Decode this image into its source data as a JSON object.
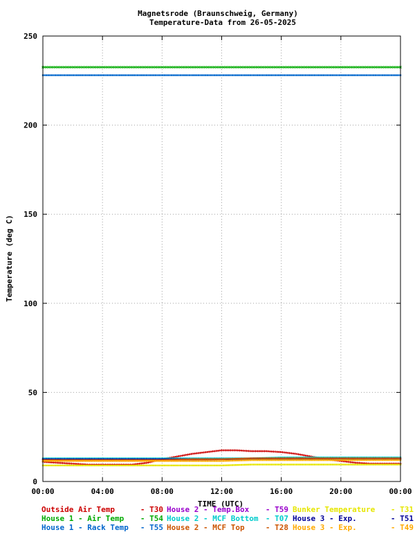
{
  "chart_data": {
    "type": "scatter",
    "title": "Magnetsrode (Braunschweig, Germany)",
    "subtitle": "Temperature-Data from 26-05-2025",
    "xlabel": "TIME (UTC)",
    "ylabel": "Temperature (deg C)",
    "xlim": [
      0,
      24
    ],
    "ylim": [
      0,
      250
    ],
    "x_ticks": [
      "00:00",
      "04:00",
      "08:00",
      "12:00",
      "16:00",
      "20:00",
      "00:00"
    ],
    "y_ticks": [
      "0",
      "50",
      "100",
      "150",
      "200",
      "250"
    ],
    "grid": true,
    "legend_position": "bottom",
    "series": [
      {
        "name": "Outside Air Temp",
        "code": "T30",
        "color": "#cc0000",
        "marker": "plus",
        "x": [
          0,
          1,
          2,
          3,
          4,
          5,
          6,
          7,
          8,
          9,
          10,
          11,
          12,
          13,
          14,
          15,
          16,
          17,
          18,
          19,
          20,
          21,
          22,
          23,
          24
        ],
        "y": [
          11,
          10.5,
          10,
          9.5,
          9.5,
          9.5,
          9.5,
          10.5,
          12.5,
          14,
          15.5,
          16.5,
          17.5,
          17.5,
          17,
          17,
          16.5,
          15.5,
          14,
          12.5,
          11.5,
          10.5,
          10,
          10,
          10
        ]
      },
      {
        "name": "House 2 - Temp.Box",
        "code": "T59",
        "color": "#9900cc",
        "marker": "dot",
        "x": [
          0,
          2,
          4,
          6,
          8,
          10,
          12,
          14,
          16,
          18,
          20,
          22,
          24
        ],
        "y": [
          12,
          12,
          12,
          12,
          12,
          12,
          12.5,
          13,
          13,
          13,
          13,
          13,
          13
        ]
      },
      {
        "name": "Bunker Temperature",
        "code": "T31",
        "color": "#e6e600",
        "marker": "dot",
        "x": [
          0,
          2,
          4,
          6,
          8,
          10,
          12,
          14,
          16,
          18,
          20,
          22,
          24
        ],
        "y": [
          9,
          9,
          9,
          9,
          9,
          9,
          9,
          9.5,
          9.5,
          9.5,
          9.5,
          9.5,
          9.5
        ]
      },
      {
        "name": "House 1 - Air  Temp",
        "code": "T54",
        "color": "#00aa00",
        "marker": "cross",
        "x": [
          0,
          2,
          4,
          6,
          8,
          10,
          12,
          14,
          16,
          18,
          20,
          22,
          24
        ],
        "y": [
          232.5,
          232.5,
          232.5,
          232.5,
          232.5,
          232.5,
          232.5,
          232.5,
          232.5,
          232.5,
          232.5,
          232.5,
          232.5
        ]
      },
      {
        "name": "House 2 - MCF Bottom",
        "code": "T07",
        "color": "#00cccc",
        "marker": "dot",
        "x": [
          0,
          2,
          4,
          6,
          8,
          10,
          12,
          14,
          16,
          18,
          20,
          22,
          24
        ],
        "y": [
          13,
          13,
          13,
          13,
          13,
          13,
          13,
          13,
          13.5,
          13.5,
          13.5,
          13.5,
          13.5
        ]
      },
      {
        "name": "House 3 - Exp.",
        "code": "T51",
        "color": "#000099",
        "marker": "dot",
        "x": [
          0,
          2,
          4,
          6,
          8,
          10,
          12,
          14,
          16,
          18,
          20,
          22,
          24
        ],
        "y": [
          12.5,
          12.5,
          12.5,
          12.5,
          12.5,
          12.5,
          12.5,
          12.5,
          12.5,
          12.5,
          12.5,
          12.5,
          12.5
        ]
      },
      {
        "name": "House 1 - Rack Temp",
        "code": "T55",
        "color": "#0066cc",
        "marker": "dot",
        "x": [
          0,
          2,
          4,
          6,
          8,
          10,
          12,
          14,
          16,
          18,
          20,
          22,
          24
        ],
        "y": [
          228,
          228,
          228,
          228,
          228,
          228,
          228,
          228,
          228,
          228,
          228,
          228,
          228
        ]
      },
      {
        "name": "House 2 - MCF Top",
        "code": "T28",
        "color": "#cc5500",
        "marker": "dot",
        "x": [
          0,
          2,
          4,
          6,
          8,
          10,
          12,
          14,
          16,
          18,
          20,
          22,
          24
        ],
        "y": [
          12,
          12,
          12,
          12,
          12,
          12.5,
          12.5,
          13,
          13,
          13,
          13,
          13,
          13
        ]
      },
      {
        "name": "House 3 - Exp.",
        "code": "T49",
        "color": "#ffaa00",
        "marker": "dot",
        "x": [
          0,
          2,
          4,
          6,
          8,
          10,
          12,
          14,
          16,
          18,
          20,
          22,
          24
        ],
        "y": [
          11.5,
          11.5,
          11.5,
          11.5,
          11.5,
          11.5,
          11.5,
          12,
          12,
          12,
          12,
          12,
          12
        ]
      }
    ]
  }
}
